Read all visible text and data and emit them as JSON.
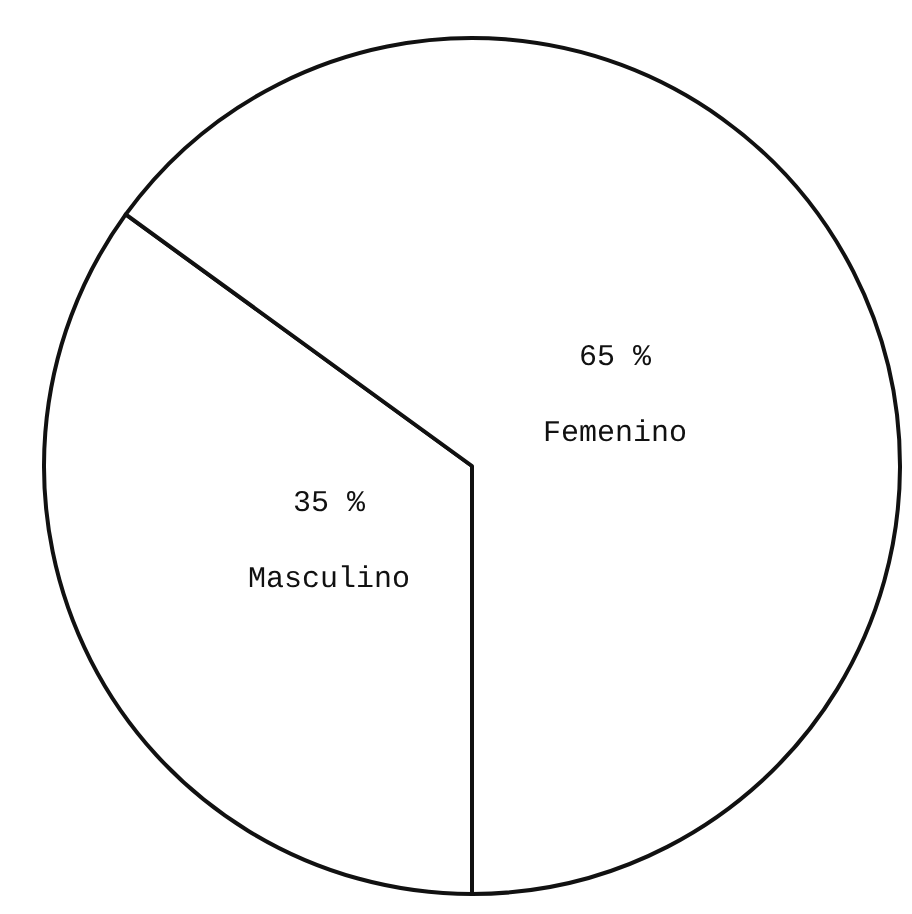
{
  "chart_data": {
    "type": "pie",
    "categories": [
      "Masculino",
      "Femenino"
    ],
    "values": [
      35,
      65
    ],
    "colors": [
      "#ffffff",
      "#ffffff"
    ],
    "value_labels": [
      "35 %",
      "65 %"
    ]
  }
}
